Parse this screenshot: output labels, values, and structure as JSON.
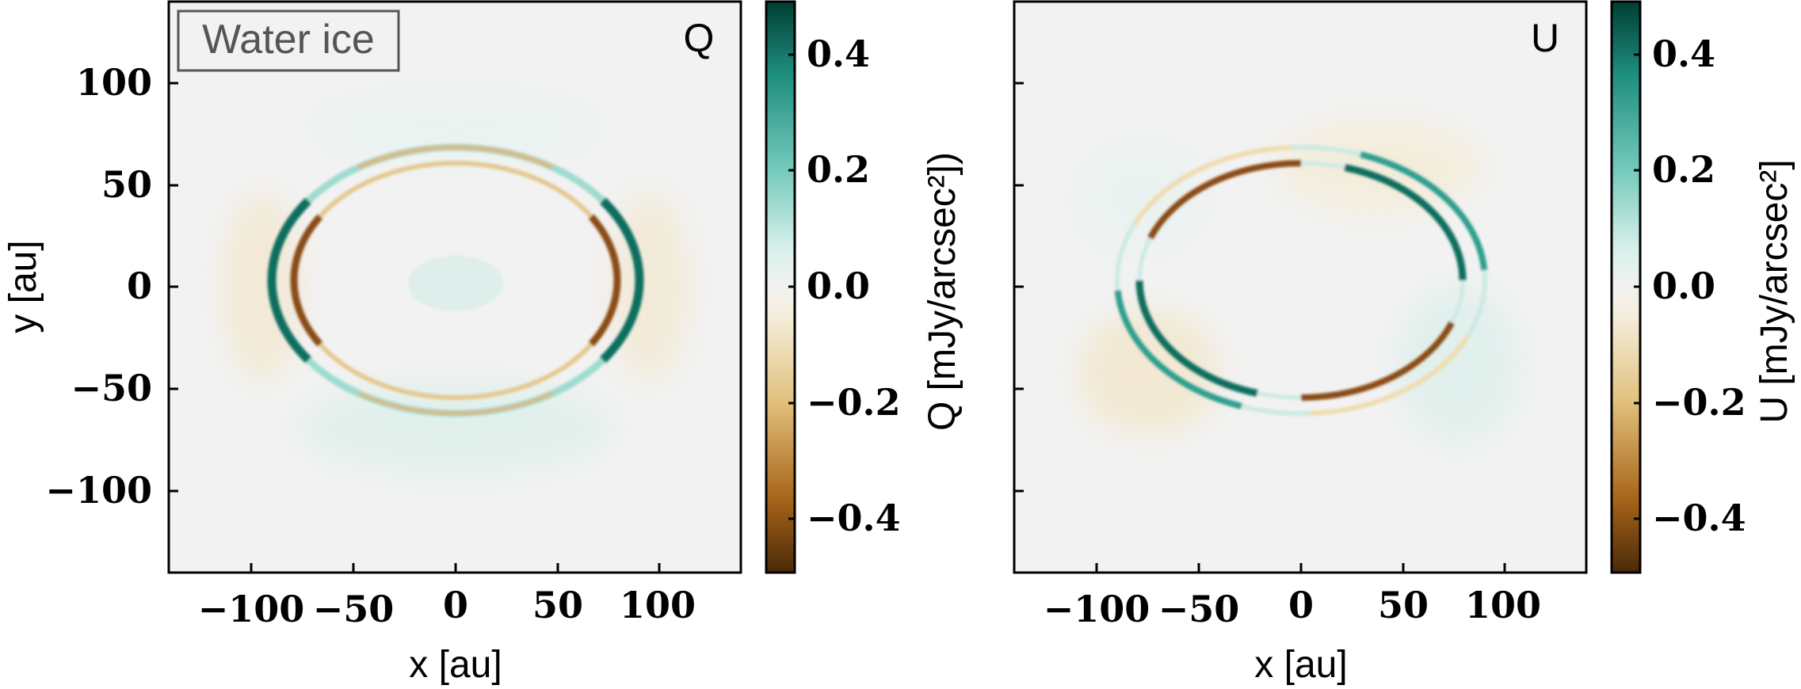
{
  "chart_data": [
    {
      "type": "heatmap",
      "panel_label": "Q",
      "title": "",
      "annotation": "Water ice",
      "xlabel": "x [au]",
      "ylabel": "y [au]",
      "xlim": [
        -140,
        140
      ],
      "ylim": [
        -140,
        140
      ],
      "xticks": [
        -100,
        -50,
        0,
        50,
        100
      ],
      "xtick_labels": [
        "−100",
        "−50",
        "0",
        "50",
        "100"
      ],
      "yticks": [
        -100,
        -50,
        0,
        50,
        100
      ],
      "ytick_labels": [
        "−100",
        "−50",
        "0",
        "50",
        "100"
      ],
      "colorbar": {
        "label": "Q [mJy/arcsec²])",
        "range": [
          -0.5,
          0.5
        ],
        "ticks": [
          -0.4,
          -0.2,
          0.0,
          0.2,
          0.4
        ],
        "tick_labels": [
          "−0.4",
          "−0.2",
          "0.0",
          "0.2",
          "0.4"
        ],
        "colormap": "BrBG",
        "colors": [
          "#4a2a08",
          "#a8651a",
          "#e2c17d",
          "#f5eedc",
          "#f2f2f2",
          "#d6efea",
          "#78cbbd",
          "#1f8f80",
          "#003f33"
        ]
      },
      "features": [
        {
          "name": "outer ring",
          "semi_major_au": 90,
          "semi_minor_au": 66,
          "center_y_au": 3
        },
        {
          "name": "inner ring",
          "semi_major_au": 79,
          "semi_minor_au": 58,
          "center_y_au": 3
        }
      ]
    },
    {
      "type": "heatmap",
      "panel_label": "U",
      "title": "",
      "xlabel": "x [au]",
      "ylabel": "",
      "xlim": [
        -140,
        140
      ],
      "ylim": [
        -140,
        140
      ],
      "xticks": [
        -100,
        -50,
        0,
        50,
        100
      ],
      "xtick_labels": [
        "−100",
        "−50",
        "0",
        "50",
        "100"
      ],
      "yticks": [
        -100,
        -50,
        0,
        50,
        100
      ],
      "colorbar": {
        "label": "U [mJy/arcsec²]",
        "range": [
          -0.5,
          0.5
        ],
        "ticks": [
          -0.4,
          -0.2,
          0.0,
          0.2,
          0.4
        ],
        "tick_labels": [
          "−0.4",
          "−0.2",
          "0.0",
          "0.2",
          "0.4"
        ],
        "colormap": "BrBG",
        "colors": [
          "#4a2a08",
          "#a8651a",
          "#e2c17d",
          "#f5eedc",
          "#f2f2f2",
          "#d6efea",
          "#78cbbd",
          "#1f8f80",
          "#003f33"
        ]
      },
      "features": [
        {
          "name": "outer ring",
          "semi_major_au": 90,
          "semi_minor_au": 66,
          "center_y_au": 3
        },
        {
          "name": "inner ring",
          "semi_major_au": 79,
          "semi_minor_au": 58,
          "center_y_au": 3
        }
      ]
    }
  ]
}
